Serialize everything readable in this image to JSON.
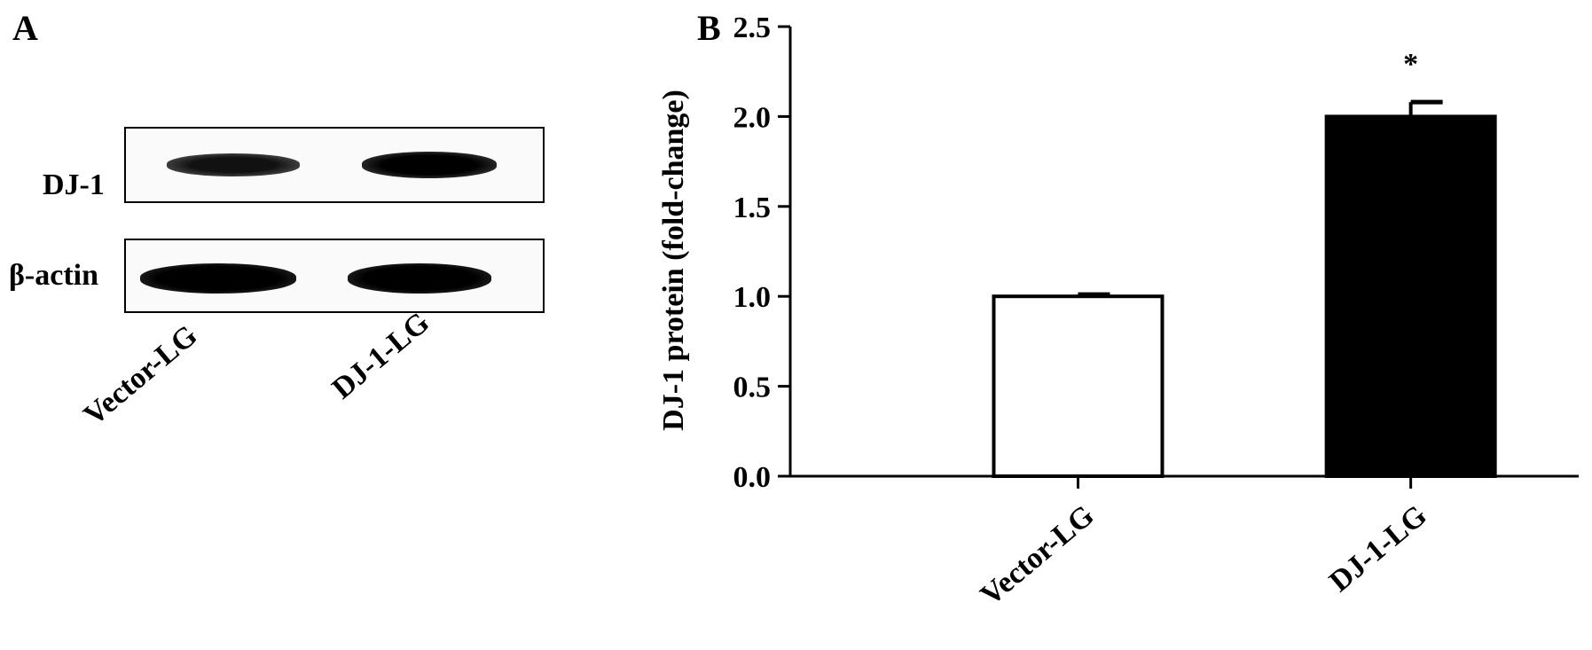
{
  "panel_a": {
    "letter": "A",
    "rows": [
      {
        "label": "DJ-1"
      },
      {
        "label": "β-actin"
      }
    ],
    "lanes": [
      "Vector-LG",
      "DJ-1-LG"
    ]
  },
  "panel_b": {
    "letter": "B"
  },
  "chart_data": {
    "type": "bar",
    "categories": [
      "Vector-LG",
      "DJ-1-LG"
    ],
    "values": [
      1.0,
      2.0
    ],
    "errors": [
      0.01,
      0.08
    ],
    "annotations": [
      "",
      "*"
    ],
    "bar_colors": [
      "#ffffff",
      "#000000"
    ],
    "title": "",
    "xlabel": "",
    "ylabel": "DJ-1 protein (fold-change)",
    "ylim": [
      0,
      2.5
    ],
    "yticks": [
      "0.0",
      "0.5",
      "1.0",
      "1.5",
      "2.0",
      "2.5"
    ],
    "grid": false,
    "legend": "none"
  }
}
